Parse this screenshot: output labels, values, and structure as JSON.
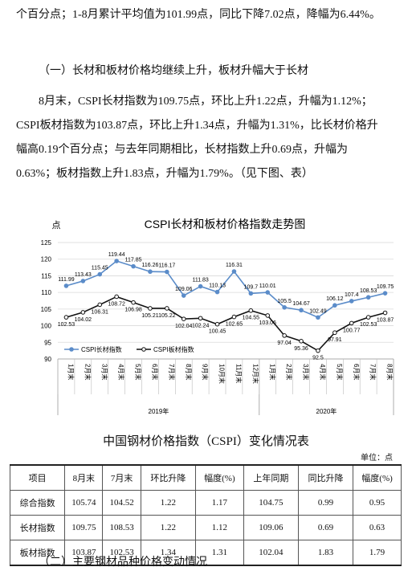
{
  "document": {
    "paragraph1": "个百分点；1-8月累计平均值为101.99点，同比下降7.02点，降幅为6.44%。",
    "heading1": "（一）长材和板材价格均继续上升，板材升幅大于长材",
    "paragraph2": "8月末，CSPI长材指数为109.75点，环比上升1.22点，升幅为1.12%；CSPI板材指数为103.87点，环比上升1.34点，升幅为1.31%，比长材价格升幅高0.19个百分点；与去年同期相比，长材指数上升0.69点，升幅为0.63%；板材指数上升1.83点，升幅为1.79%。（见下图、表）",
    "heading2": "（二）主要钢材品种价格变动情况"
  },
  "chart_data": {
    "type": "line",
    "title": "CSPI长材和板材价格指数走势图",
    "y_label": "点",
    "category_groups": [
      {
        "label": "2019年",
        "categories": [
          "1月末",
          "2月末",
          "3月末",
          "4月末",
          "5月末",
          "6月末",
          "7月末",
          "8月末",
          "9月末",
          "10月末",
          "11月末",
          "12月末"
        ]
      },
      {
        "label": "2020年",
        "categories": [
          "1月末",
          "2月末",
          "3月末",
          "4月末",
          "5月末",
          "6月末",
          "7月末",
          "8月末"
        ]
      }
    ],
    "series": [
      {
        "name": "CSPI长材指数",
        "color": "#5b8cc9",
        "values": [
          111.99,
          113.43,
          115.45,
          119.44,
          117.85,
          116.26,
          116.17,
          109.06,
          111.83,
          110.13,
          116.31,
          109.7,
          110.01,
          105.5,
          104.67,
          102.49,
          106.12,
          107.4,
          108.53,
          109.75
        ]
      },
      {
        "name": "CSPI板材指数",
        "color": "#111111",
        "values": [
          102.53,
          104.02,
          106.31,
          108.72,
          106.98,
          105.21,
          105.22,
          102.04,
          102.24,
          100.45,
          102.65,
          104.55,
          103.06,
          97.04,
          95.36,
          92.5,
          97.91,
          100.77,
          102.53,
          103.87
        ]
      }
    ],
    "ylim": [
      90,
      125
    ],
    "yticks": [
      90,
      95,
      100,
      105,
      110,
      115,
      120,
      125
    ],
    "grid": true,
    "legend": "bottom-left"
  },
  "table": {
    "title": "中国钢材价格指数（CSPI）变化情况表",
    "unit": "单位：点",
    "header": [
      "项目",
      "8月末",
      "7月末",
      "环比升降",
      "幅度(%)",
      "上年同期",
      "同比升降",
      "幅度(%)"
    ],
    "rows": [
      [
        "综合指数",
        105.74,
        104.52,
        1.22,
        1.17,
        104.75,
        0.99,
        0.95
      ],
      [
        "长材指数",
        109.75,
        108.53,
        1.22,
        1.12,
        109.06,
        0.69,
        0.63
      ],
      [
        "板材指数",
        103.87,
        102.53,
        1.34,
        1.31,
        102.04,
        1.83,
        1.79
      ]
    ]
  }
}
